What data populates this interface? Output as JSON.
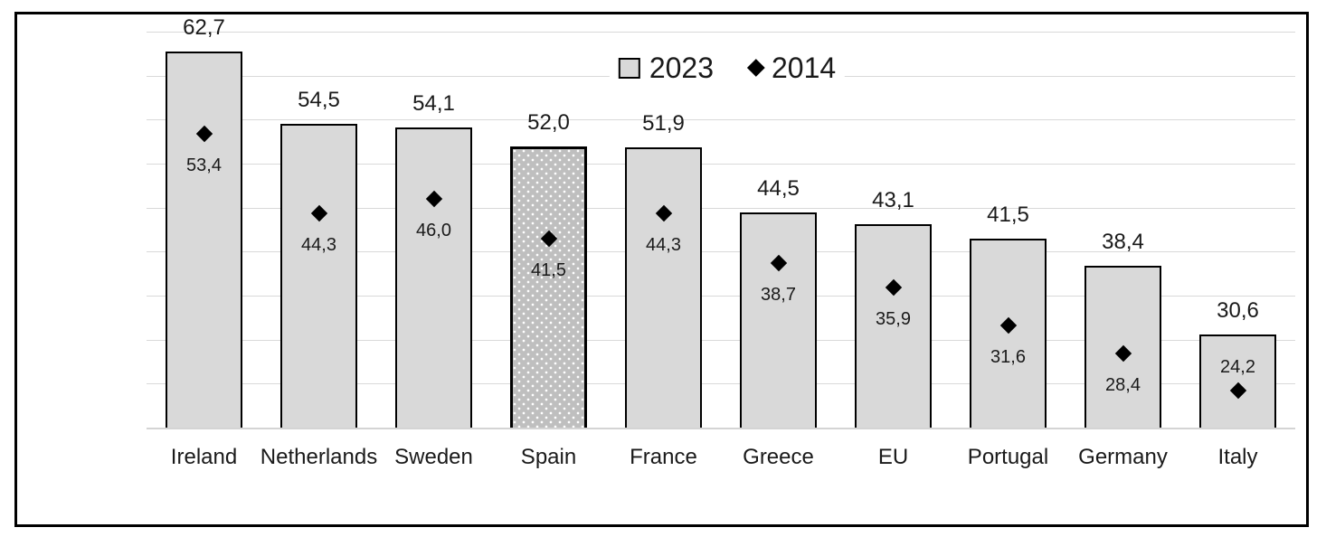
{
  "chart_data": {
    "type": "bar",
    "title": "",
    "categories": [
      "Ireland",
      "Netherlands",
      "Sweden",
      "Spain",
      "France",
      "Greece",
      "EU",
      "Portugal",
      "Germany",
      "Italy"
    ],
    "series": [
      {
        "name": "2023",
        "type": "bar",
        "values": [
          62.7,
          54.5,
          54.1,
          52.0,
          51.9,
          44.5,
          43.1,
          41.5,
          38.4,
          30.6
        ],
        "labels": [
          "62,7",
          "54,5",
          "54,1",
          "52,0",
          "51,9",
          "44,5",
          "43,1",
          "41,5",
          "38,4",
          "30,6"
        ]
      },
      {
        "name": "2014",
        "type": "scatter",
        "marker": "diamond",
        "values": [
          53.4,
          44.3,
          46.0,
          41.5,
          44.3,
          38.7,
          35.9,
          31.6,
          28.4,
          24.2
        ],
        "labels": [
          "53,4",
          "44,3",
          "46,0",
          "41,5",
          "44,3",
          "38,7",
          "35,9",
          "31,6",
          "28,4",
          "24,2"
        ]
      }
    ],
    "highlighted_category": "Spain",
    "decimal_separator": ",",
    "ylim": [
      20,
      65
    ],
    "gridline_interval": 5,
    "grid": true,
    "y_axis_labels_visible": false,
    "legend_position": "top-center",
    "colors": {
      "bar_fill": "#d9d9d9",
      "bar_border": "#000000",
      "highlight_fill": "#bfbfbf",
      "highlight_dots": "#ffffff",
      "marker": "#000000",
      "gridline": "#d9d9d9",
      "axis_line": "#d4d4d4",
      "text": "#1a1a1a",
      "frame_border": "#000000",
      "background": "#ffffff"
    }
  }
}
